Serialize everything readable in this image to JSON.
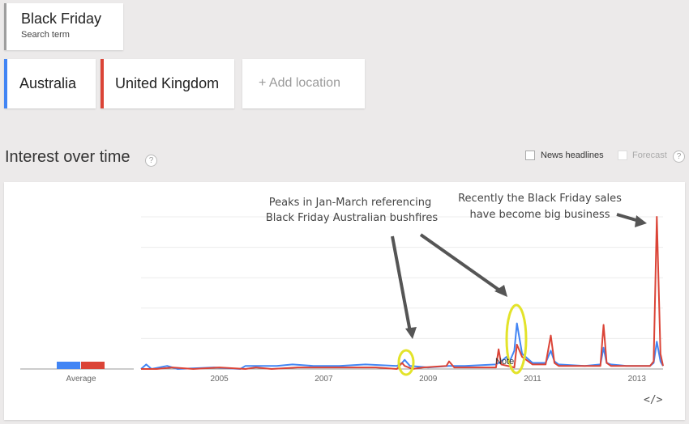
{
  "search_term": {
    "title": "Black Friday",
    "subtitle": "Search term"
  },
  "locations": [
    {
      "label": "Australia",
      "color": "#4285f4"
    },
    {
      "label": "United Kingdom",
      "color": "#db4437"
    }
  ],
  "add_location_label": "+ Add location",
  "section": {
    "title": "Interest over time",
    "help": "?"
  },
  "options": {
    "news_headlines": "News headlines",
    "forecast": "Forecast",
    "help": "?"
  },
  "embed_icon": "</>",
  "chart_data": {
    "type": "line",
    "average_label": "Average",
    "averages": [
      8,
      8
    ],
    "x_ticks": [
      "2005",
      "2007",
      "2009",
      "2011",
      "2013"
    ],
    "x_range": [
      2004.0,
      2014.0
    ],
    "ylim": [
      0,
      100
    ],
    "series": [
      {
        "name": "Australia",
        "color": "#4285f4",
        "points": [
          [
            2004.0,
            0
          ],
          [
            2004.1,
            3
          ],
          [
            2004.2,
            0
          ],
          [
            2004.5,
            2
          ],
          [
            2004.7,
            0
          ],
          [
            2005.4,
            1
          ],
          [
            2005.9,
            0
          ],
          [
            2006.0,
            2
          ],
          [
            2006.6,
            2
          ],
          [
            2006.9,
            3
          ],
          [
            2007.3,
            2
          ],
          [
            2007.8,
            2
          ],
          [
            2008.3,
            3
          ],
          [
            2008.9,
            2
          ],
          [
            2009.0,
            4
          ],
          [
            2009.05,
            6
          ],
          [
            2009.15,
            2
          ],
          [
            2009.5,
            1
          ],
          [
            2009.9,
            2
          ],
          [
            2010.2,
            2
          ],
          [
            2010.8,
            3
          ],
          [
            2010.9,
            5
          ],
          [
            2011.0,
            8
          ],
          [
            2011.05,
            4
          ],
          [
            2011.15,
            12
          ],
          [
            2011.2,
            30
          ],
          [
            2011.3,
            10
          ],
          [
            2011.5,
            4
          ],
          [
            2011.75,
            4
          ],
          [
            2011.85,
            12
          ],
          [
            2011.92,
            5
          ],
          [
            2012.0,
            3
          ],
          [
            2012.5,
            2
          ],
          [
            2012.8,
            3
          ],
          [
            2012.86,
            14
          ],
          [
            2012.92,
            4
          ],
          [
            2013.0,
            3
          ],
          [
            2013.3,
            2
          ],
          [
            2013.75,
            2
          ],
          [
            2013.82,
            4
          ],
          [
            2013.88,
            18
          ],
          [
            2013.95,
            5
          ],
          [
            2014.0,
            2
          ]
        ]
      },
      {
        "name": "United Kingdom",
        "color": "#db4437",
        "points": [
          [
            2004.0,
            0
          ],
          [
            2004.3,
            0
          ],
          [
            2004.6,
            1
          ],
          [
            2005.0,
            0
          ],
          [
            2005.5,
            1
          ],
          [
            2006.0,
            0
          ],
          [
            2006.2,
            1
          ],
          [
            2006.5,
            0
          ],
          [
            2007.0,
            1
          ],
          [
            2007.5,
            1
          ],
          [
            2008.0,
            1
          ],
          [
            2008.5,
            1
          ],
          [
            2008.9,
            0
          ],
          [
            2009.0,
            4
          ],
          [
            2009.05,
            2
          ],
          [
            2009.2,
            0
          ],
          [
            2009.4,
            1
          ],
          [
            2009.85,
            2
          ],
          [
            2009.9,
            5
          ],
          [
            2010.0,
            1
          ],
          [
            2010.5,
            1
          ],
          [
            2010.8,
            1
          ],
          [
            2010.85,
            13
          ],
          [
            2010.9,
            3
          ],
          [
            2011.15,
            1
          ],
          [
            2011.2,
            16
          ],
          [
            2011.3,
            8
          ],
          [
            2011.5,
            3
          ],
          [
            2011.75,
            3
          ],
          [
            2011.85,
            22
          ],
          [
            2011.92,
            4
          ],
          [
            2012.0,
            2
          ],
          [
            2012.5,
            2
          ],
          [
            2012.8,
            2
          ],
          [
            2012.86,
            29
          ],
          [
            2012.92,
            4
          ],
          [
            2013.0,
            2
          ],
          [
            2013.3,
            2
          ],
          [
            2013.75,
            2
          ],
          [
            2013.82,
            5
          ],
          [
            2013.88,
            100
          ],
          [
            2013.95,
            10
          ],
          [
            2014.0,
            2
          ]
        ]
      }
    ],
    "note_label": "Note",
    "annotations": [
      {
        "lines": [
          "Peaks in Jan-March referencing",
          "Black Friday Australian bushfires"
        ]
      },
      {
        "lines": [
          "Recently the Black Friday sales",
          "have become big business"
        ]
      }
    ]
  }
}
